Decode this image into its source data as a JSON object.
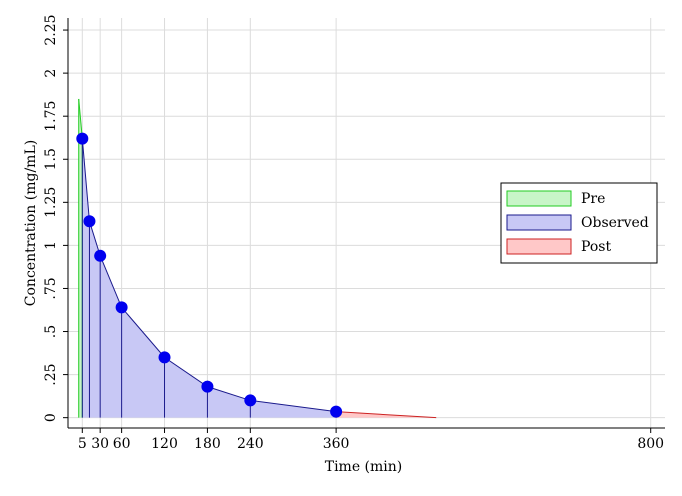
{
  "chart_data": {
    "type": "area",
    "xlabel": "Time (min)",
    "ylabel": "Concentration (mg/mL)",
    "x_ticks": [
      5,
      30,
      60,
      120,
      180,
      240,
      360,
      800
    ],
    "x_tick_labels": [
      "5",
      "30",
      "60",
      "120",
      "180",
      "240",
      "360",
      "800"
    ],
    "y_ticks": [
      0,
      0.25,
      0.5,
      0.75,
      1,
      1.25,
      1.5,
      1.75,
      2,
      2.25
    ],
    "y_tick_labels": [
      "0",
      ".25",
      ".5",
      ".75",
      "1",
      "1.25",
      "1.5",
      "1.75",
      "2",
      "2.25"
    ],
    "xlim": [
      -15,
      820
    ],
    "ylim": [
      -0.06,
      2.32
    ],
    "grid": true,
    "legend_position": "right",
    "colors": {
      "pre_fill": "#c8f5c8",
      "pre_line": "#22cc22",
      "observed_fill": "#c8c8f5",
      "observed_line": "#1a1a8c",
      "observed_marker": "#0000ee",
      "post_fill": "#ffc8c8",
      "post_line": "#cc2222"
    },
    "series": [
      {
        "name": "Pre",
        "role": "pre",
        "x": [
          0,
          5
        ],
        "y": [
          1.85,
          1.62
        ]
      },
      {
        "name": "Observed",
        "role": "observed",
        "x": [
          5,
          15,
          30,
          60,
          120,
          180,
          240,
          360
        ],
        "y": [
          1.62,
          1.14,
          0.94,
          0.64,
          0.35,
          0.18,
          0.1,
          0.035
        ]
      },
      {
        "name": "Post",
        "role": "post",
        "x": [
          360,
          500
        ],
        "y": [
          0.035,
          0.0
        ]
      }
    ]
  }
}
